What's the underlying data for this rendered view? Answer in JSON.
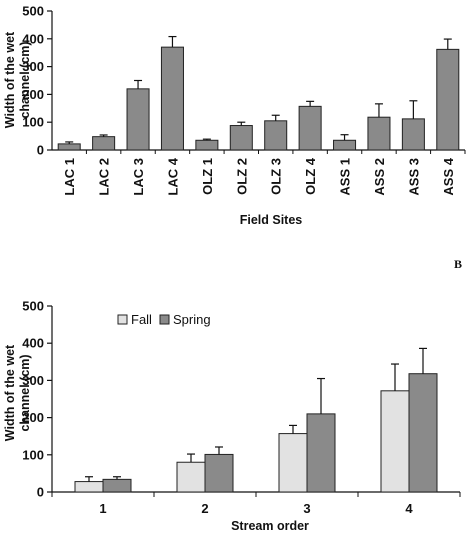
{
  "figure": {
    "panel_b_label": "B"
  },
  "chart_data": [
    {
      "type": "bar",
      "categories": [
        "LAC 1",
        "LAC 2",
        "LAC 3",
        "LAC 4",
        "OLZ 1",
        "OLZ 2",
        "OLZ 3",
        "OLZ 4",
        "ASS 1",
        "ASS 2",
        "ASS 3",
        "ASS 4"
      ],
      "values": [
        22,
        48,
        220,
        370,
        35,
        88,
        105,
        157,
        35,
        118,
        112,
        362
      ],
      "errors": [
        7,
        6,
        30,
        38,
        4,
        12,
        20,
        18,
        20,
        48,
        65,
        37
      ],
      "title": "",
      "xlabel": "Field Sites",
      "ylabel": [
        "Width of the wet",
        "channel (cm)"
      ],
      "ylim": [
        0,
        500
      ],
      "yticks": [
        0,
        100,
        200,
        300,
        400,
        500
      ],
      "bar_color": "#8a8a8a",
      "grid": false
    },
    {
      "type": "bar",
      "categories": [
        "1",
        "2",
        "3",
        "4"
      ],
      "series": [
        {
          "name": "Fall",
          "values": [
            28,
            80,
            157,
            272
          ],
          "errors": [
            13,
            22,
            22,
            72
          ],
          "color": "#e2e2e2"
        },
        {
          "name": "Spring",
          "values": [
            34,
            101,
            210,
            318
          ],
          "errors": [
            7,
            20,
            95,
            68
          ],
          "color": "#8a8a8a"
        }
      ],
      "title": "",
      "xlabel": "Stream order",
      "ylabel": [
        "Width of the wet",
        "channel (cm)"
      ],
      "ylim": [
        0,
        500
      ],
      "yticks": [
        0,
        100,
        200,
        300,
        400,
        500
      ],
      "legend_position": "top-left",
      "grid": false
    }
  ]
}
